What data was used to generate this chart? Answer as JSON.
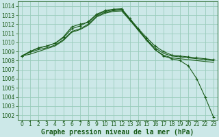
{
  "background_color": "#cce8e8",
  "grid_color": "#99ccbb",
  "line_color": "#1a5c1a",
  "marker_color": "#1a5c1a",
  "xlabel": "Graphe pression niveau de la mer (hPa)",
  "xlabel_fontsize": 7,
  "tick_fontsize": 5.5,
  "xlim": [
    -0.5,
    23.5
  ],
  "ylim": [
    1001.5,
    1014.5
  ],
  "yticks": [
    1002,
    1003,
    1004,
    1005,
    1006,
    1007,
    1008,
    1009,
    1010,
    1011,
    1012,
    1013,
    1014
  ],
  "xticks": [
    0,
    1,
    2,
    3,
    4,
    5,
    6,
    7,
    8,
    9,
    10,
    11,
    12,
    13,
    14,
    15,
    16,
    17,
    18,
    19,
    20,
    21,
    22,
    23
  ],
  "series": [
    {
      "x": [
        0,
        1,
        2,
        3,
        4,
        5,
        6,
        7,
        8,
        9,
        10,
        11,
        12,
        13,
        14,
        15,
        16,
        17,
        18,
        19,
        20,
        21,
        22,
        23
      ],
      "y": [
        1008.5,
        1009.0,
        1009.4,
        1009.6,
        1009.9,
        1010.5,
        1011.5,
        1011.8,
        1012.3,
        1013.1,
        1013.5,
        1013.65,
        1013.7,
        1012.6,
        1011.5,
        1010.5,
        1009.6,
        1009.0,
        1008.6,
        1008.5,
        1008.4,
        1008.3,
        1008.2,
        1008.1
      ],
      "marker": "+"
    },
    {
      "x": [
        0,
        1,
        2,
        3,
        4,
        5,
        6,
        7,
        8,
        9,
        10,
        11,
        12,
        13,
        14,
        15,
        16,
        17,
        18,
        19,
        20,
        21,
        22,
        23
      ],
      "y": [
        1008.5,
        1008.9,
        1009.2,
        1009.4,
        1009.7,
        1010.3,
        1011.2,
        1011.5,
        1012.0,
        1012.9,
        1013.3,
        1013.5,
        1013.55,
        1012.5,
        1011.4,
        1010.3,
        1009.4,
        1008.8,
        1008.5,
        1008.4,
        1008.3,
        1008.2,
        1008.1,
        1008.0
      ],
      "marker": null
    },
    {
      "x": [
        0,
        1,
        2,
        3,
        4,
        5,
        6,
        7,
        8,
        9,
        10,
        11,
        12,
        13,
        14,
        15,
        16,
        17,
        18,
        19,
        20,
        21,
        22,
        23
      ],
      "y": [
        1008.5,
        1008.7,
        1009.0,
        1009.3,
        1009.6,
        1010.2,
        1011.1,
        1011.4,
        1011.9,
        1012.8,
        1013.2,
        1013.4,
        1013.45,
        1012.4,
        1011.3,
        1010.2,
        1009.2,
        1008.6,
        1008.3,
        1008.2,
        1008.1,
        1008.0,
        1007.9,
        1007.8
      ],
      "marker": null
    },
    {
      "x": [
        0,
        1,
        2,
        3,
        4,
        5,
        6,
        7,
        8,
        9,
        10,
        11,
        12,
        13,
        14,
        15,
        16,
        17,
        18,
        19,
        20,
        21,
        22,
        23
      ],
      "y": [
        1008.5,
        1009.0,
        1009.35,
        1009.6,
        1009.9,
        1010.6,
        1011.7,
        1012.0,
        1012.2,
        1013.05,
        1013.4,
        1013.6,
        1013.65,
        1012.5,
        1011.4,
        1010.3,
        1009.2,
        1008.5,
        1008.2,
        1008.0,
        1007.4,
        1006.0,
        1004.0,
        1001.8
      ],
      "marker": "+"
    }
  ]
}
